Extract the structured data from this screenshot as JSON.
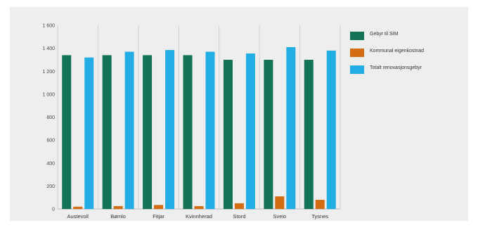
{
  "chart_data": {
    "type": "bar",
    "categories": [
      "Austevoll",
      "Bømlo",
      "Fitjar",
      "Kvinnherad",
      "Stord",
      "Sveio",
      "Tysnes"
    ],
    "series": [
      {
        "name": "Gebyr til SIM",
        "color": "#137356",
        "values": [
          1340,
          1340,
          1340,
          1340,
          1300,
          1300,
          1300
        ]
      },
      {
        "name": "Kommunal eigenkostnad",
        "color": "#d36c12",
        "values": [
          20,
          25,
          35,
          25,
          50,
          110,
          80
        ]
      },
      {
        "name": "Totalt renovasjonsgebyr",
        "color": "#22aee4",
        "values": [
          1320,
          1370,
          1385,
          1370,
          1355,
          1410,
          1380
        ]
      }
    ],
    "yticks": [
      "0",
      "200",
      "400",
      "600",
      "800",
      "1 000",
      "1 200",
      "1 400",
      "1 600"
    ],
    "ylim": [
      0,
      1600
    ],
    "grid": "vertical category separators",
    "legend_position": "right"
  }
}
